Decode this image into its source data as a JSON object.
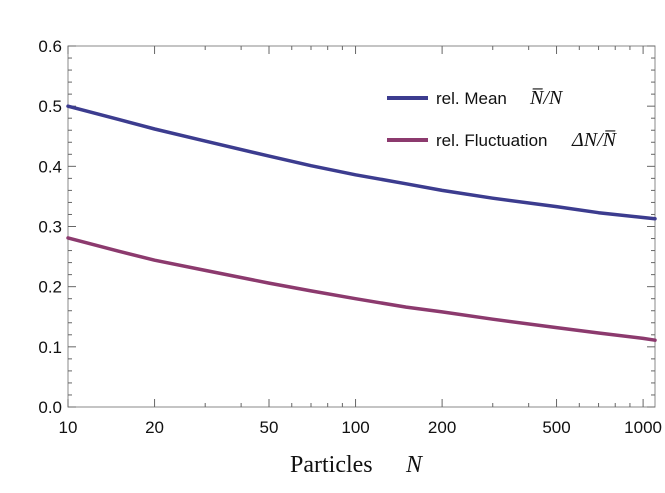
{
  "chart_data": {
    "type": "line",
    "x_scale": "log",
    "xlim": [
      10,
      1100
    ],
    "ylim": [
      0,
      0.6
    ],
    "xticks": [
      10,
      20,
      50,
      100,
      200,
      500,
      1000
    ],
    "xtick_labels": [
      "10",
      "20",
      "50",
      "100",
      "200",
      "500",
      "1000"
    ],
    "yticks": [
      0,
      0.1,
      0.2,
      0.3,
      0.4,
      0.5,
      0.6
    ],
    "ytick_labels": [
      "0.0",
      "0.1",
      "0.2",
      "0.3",
      "0.4",
      "0.5",
      "0.6"
    ],
    "xlabel_text": "Particles",
    "xlabel_symbol": "N",
    "grid": false,
    "legend_position": "top-right",
    "series": [
      {
        "name": "rel. Mean",
        "formula": "N̅/N",
        "color": "#3c3c8f",
        "x": [
          10,
          15,
          20,
          30,
          50,
          70,
          100,
          150,
          200,
          300,
          500,
          700,
          1000,
          1100
        ],
        "y": [
          0.5,
          0.478,
          0.462,
          0.442,
          0.417,
          0.401,
          0.386,
          0.371,
          0.36,
          0.347,
          0.333,
          0.323,
          0.315,
          0.313
        ]
      },
      {
        "name": "rel. Fluctuation",
        "formula": "ΔN/N̅",
        "color": "#8c3a6e",
        "x": [
          10,
          15,
          20,
          30,
          50,
          70,
          100,
          150,
          200,
          300,
          500,
          700,
          1000,
          1100
        ],
        "y": [
          0.281,
          0.259,
          0.244,
          0.227,
          0.206,
          0.193,
          0.18,
          0.166,
          0.158,
          0.146,
          0.132,
          0.123,
          0.114,
          0.111
        ]
      }
    ]
  }
}
